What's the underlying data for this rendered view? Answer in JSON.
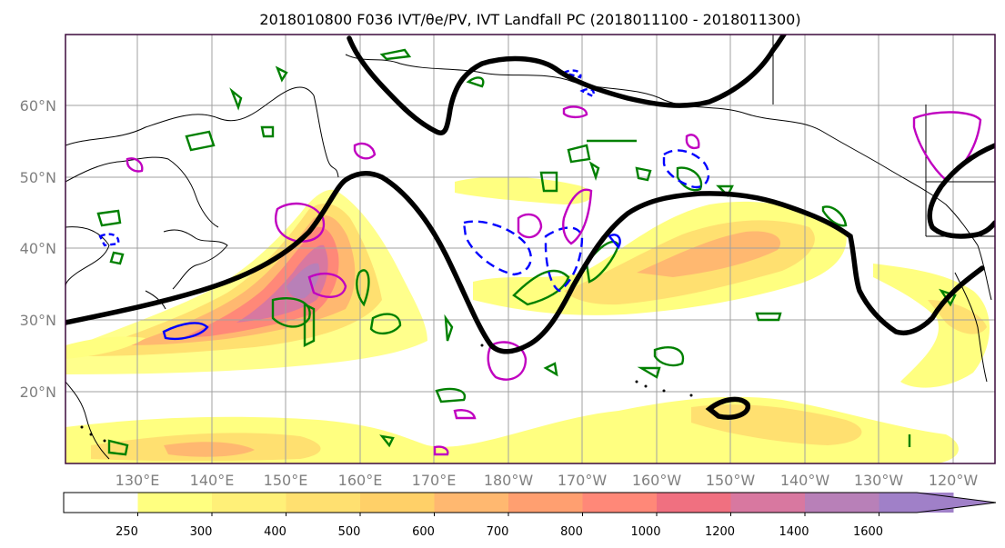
{
  "figure": {
    "title": "2018010800 F036 IVT/θe/PV, IVT Landfall PC (2018011100 - 2018011300)"
  },
  "map": {
    "lat_labels": [
      "60°N",
      "50°N",
      "40°N",
      "30°N",
      "20°N"
    ],
    "lon_labels": [
      "130°E",
      "140°E",
      "150°E",
      "160°E",
      "170°E",
      "180°W",
      "170°W",
      "160°W",
      "150°W",
      "140°W",
      "130°W",
      "120°W"
    ],
    "colors": {
      "land_coast": "#000000",
      "pc_contour": "#000000",
      "green_contour": "#008000",
      "blue_dashed_contour": "#0000ff",
      "magenta_contour": "#c000c0",
      "gridline": "#a0a0a0",
      "frame": "#3c0a3c"
    }
  },
  "colorbar": {
    "tick_labels": [
      "250",
      "300",
      "400",
      "500",
      "600",
      "700",
      "800",
      "1000",
      "1200",
      "1400",
      "1600"
    ],
    "colors": [
      "#ffffff",
      "#ffff80",
      "#fff078",
      "#ffe070",
      "#ffd068",
      "#ffb870",
      "#ff9f70",
      "#ff8878",
      "#f07080",
      "#d878a0",
      "#b880b8",
      "#a080c8"
    ]
  }
}
